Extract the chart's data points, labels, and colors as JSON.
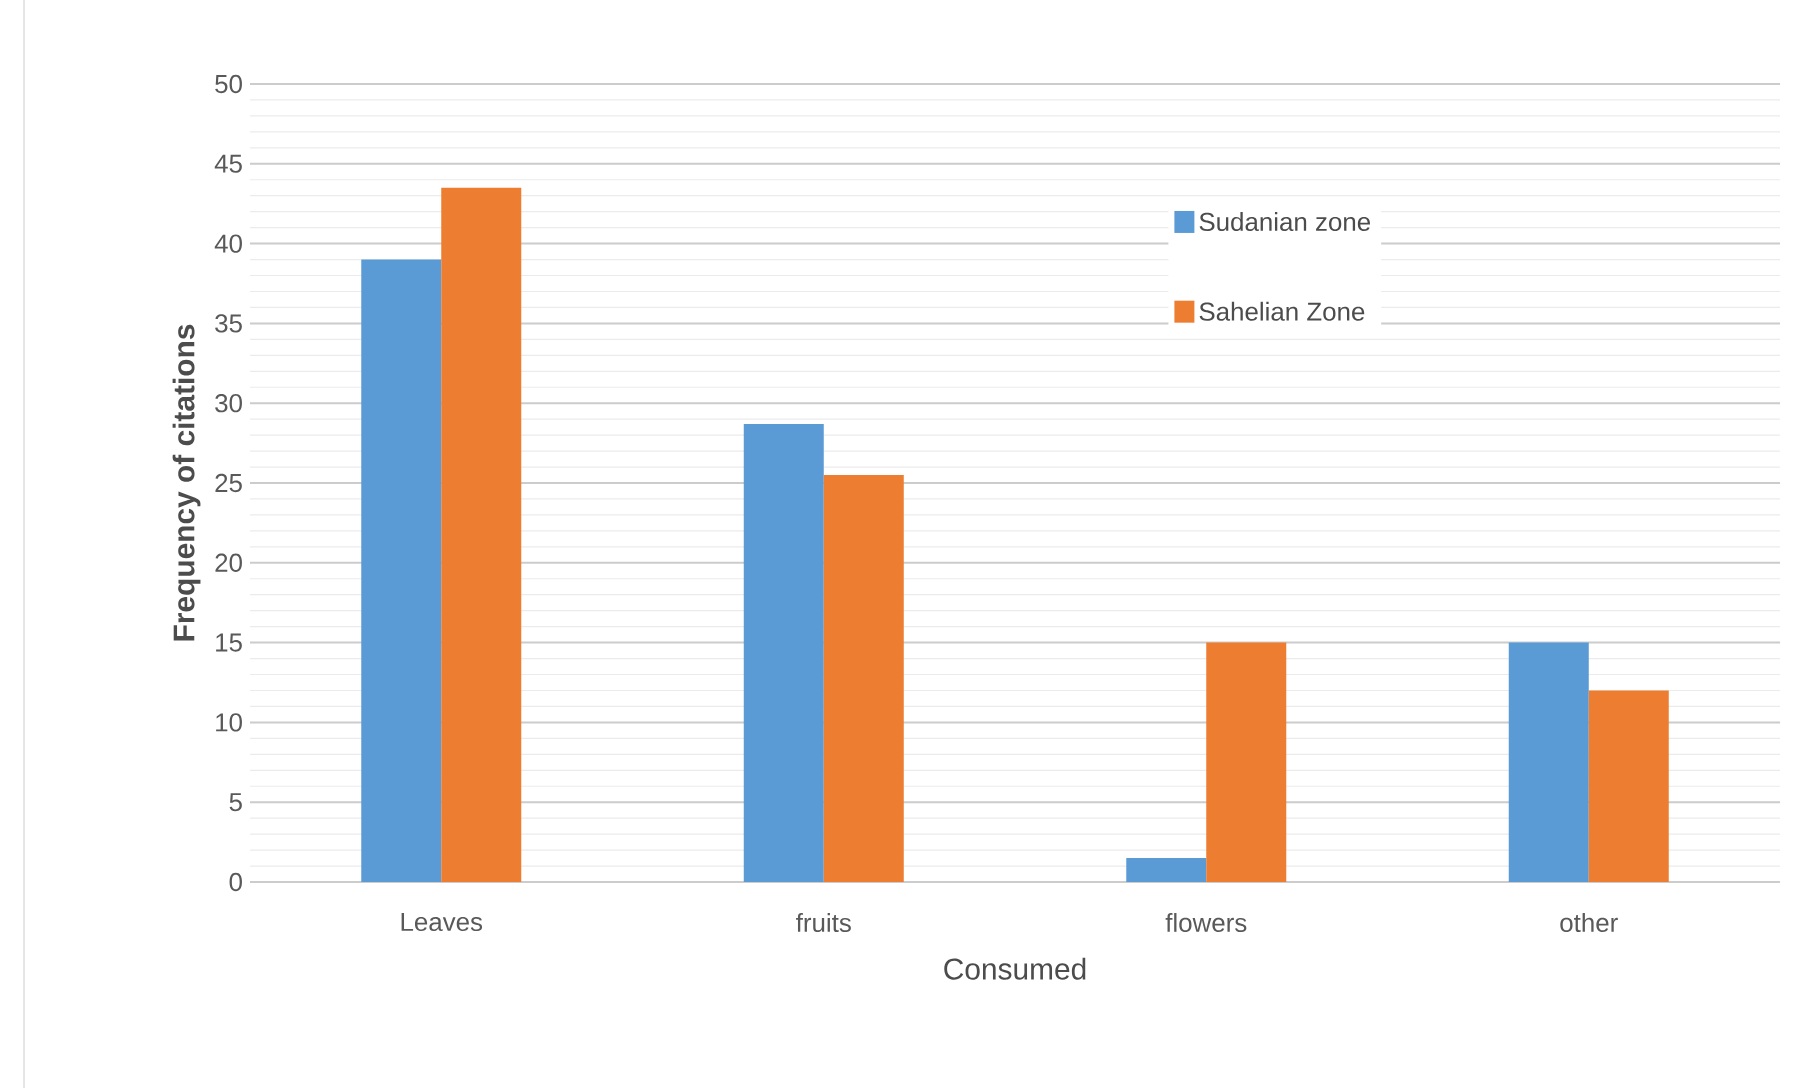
{
  "chart_data": {
    "type": "bar",
    "xlabel": "Consumed",
    "ylabel": "Frequency of citations",
    "categories": [
      "Leaves",
      "fruits",
      "flowers",
      "other"
    ],
    "series": [
      {
        "name": "Sudanian zone",
        "color": "#5b9bd5",
        "values": [
          39,
          28.7,
          1.5,
          15
        ]
      },
      {
        "name": "Sahelian Zone",
        "color": "#ed7d31",
        "values": [
          43.5,
          25.5,
          15,
          12
        ]
      }
    ],
    "ylim": [
      0,
      50
    ],
    "yticks": [
      0,
      5,
      10,
      15,
      20,
      25,
      30,
      35,
      40,
      45,
      50
    ],
    "grid": "y",
    "legend": "top right"
  }
}
